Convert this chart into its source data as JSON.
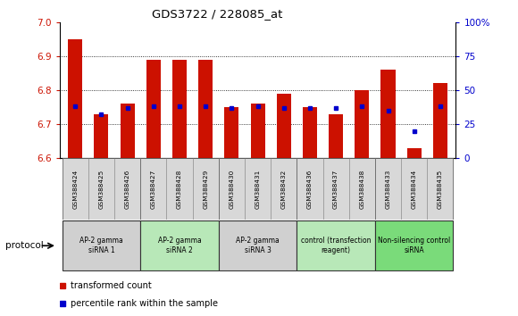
{
  "title": "GDS3722 / 228085_at",
  "samples": [
    "GSM388424",
    "GSM388425",
    "GSM388426",
    "GSM388427",
    "GSM388428",
    "GSM388429",
    "GSM388430",
    "GSM388431",
    "GSM388432",
    "GSM388436",
    "GSM388437",
    "GSM388438",
    "GSM388433",
    "GSM388434",
    "GSM388435"
  ],
  "transformed_count": [
    6.95,
    6.73,
    6.76,
    6.89,
    6.89,
    6.89,
    6.75,
    6.76,
    6.79,
    6.75,
    6.73,
    6.8,
    6.86,
    6.63,
    6.82
  ],
  "percentile_rank": [
    38,
    32,
    37,
    38,
    38,
    38,
    37,
    38,
    37,
    37,
    37,
    38,
    35,
    20,
    38
  ],
  "ylim_left": [
    6.6,
    7.0
  ],
  "ylim_right": [
    0,
    100
  ],
  "yticks_left": [
    6.6,
    6.7,
    6.8,
    6.9,
    7.0
  ],
  "yticks_right": [
    0,
    25,
    50,
    75,
    100
  ],
  "ytick_labels_right": [
    "0",
    "25",
    "50",
    "75",
    "100%"
  ],
  "bar_color": "#cc1100",
  "blue_color": "#0000cc",
  "bar_baseline": 6.6,
  "groups": [
    {
      "label": "AP-2 gamma\nsiRNA 1",
      "indices": [
        0,
        1,
        2
      ]
    },
    {
      "label": "AP-2 gamma\nsiRNA 2",
      "indices": [
        3,
        4,
        5
      ]
    },
    {
      "label": "AP-2 gamma\nsiRNA 3",
      "indices": [
        6,
        7,
        8
      ]
    },
    {
      "label": "control (transfection\nreagent)",
      "indices": [
        9,
        10,
        11
      ]
    },
    {
      "label": "Non-silencing control\nsiRNA",
      "indices": [
        12,
        13,
        14
      ]
    }
  ],
  "group_colors": [
    "#d0d0d0",
    "#b8e8b8",
    "#d0d0d0",
    "#b8e8b8",
    "#7adb7a"
  ],
  "sample_bg_color": "#d8d8d8",
  "legend_red": "transformed count",
  "legend_blue": "percentile rank within the sample",
  "protocol_label": "protocol",
  "bar_width": 0.55,
  "axis_color_left": "#cc1100",
  "axis_color_right": "#0000cc",
  "grid_yticks": [
    6.7,
    6.8,
    6.9
  ]
}
